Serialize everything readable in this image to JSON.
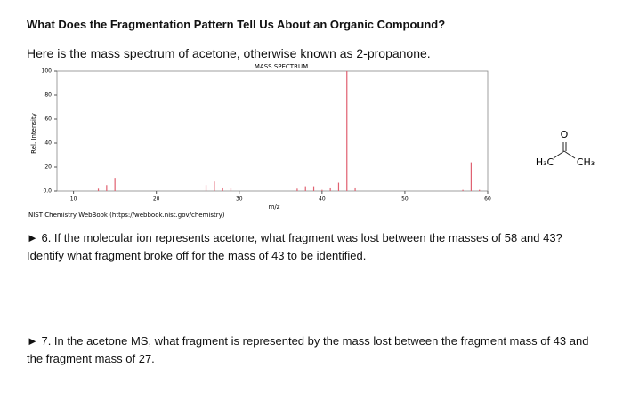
{
  "header": {
    "title": "What Does the Fragmentation Pattern Tell Us About an Organic Compound?"
  },
  "intro": "Here is the mass spectrum of acetone, otherwise known as 2-propanone.",
  "chart_data": {
    "type": "bar",
    "title": "MASS SPECTRUM",
    "x_label": "m/z",
    "y_label": "Rel. Intensity",
    "source": "NIST Chemistry WebBook (https://webbook.nist.gov/chemistry)",
    "x": [
      13,
      14,
      15,
      26,
      27,
      28,
      29,
      37,
      38,
      39,
      40,
      41,
      42,
      43,
      44,
      57,
      58,
      59
    ],
    "values": [
      2,
      5,
      11,
      5,
      8,
      3,
      3,
      2,
      4,
      4,
      1,
      3,
      7,
      100,
      3,
      1,
      24,
      1
    ],
    "color": "#e06070",
    "xlim": [
      8,
      60
    ],
    "xticks": [
      10,
      20,
      30,
      40,
      50,
      60
    ],
    "ylim": [
      0,
      100
    ],
    "yticks": [
      {
        "value": 0,
        "label": "0.0"
      },
      20,
      40,
      60,
      80,
      100
    ]
  },
  "molecule": {
    "oxygen": "O",
    "left": "H₃C",
    "right": "CH₃"
  },
  "questions": [
    "► 6. If the molecular ion represents acetone, what fragment was lost between the masses of 58 and 43? Identify what fragment broke off for the mass of 43 to be identified.",
    "► 7. In the acetone MS, what fragment is represented by the mass lost between the fragment mass of 43 and the fragment mass of 27."
  ]
}
